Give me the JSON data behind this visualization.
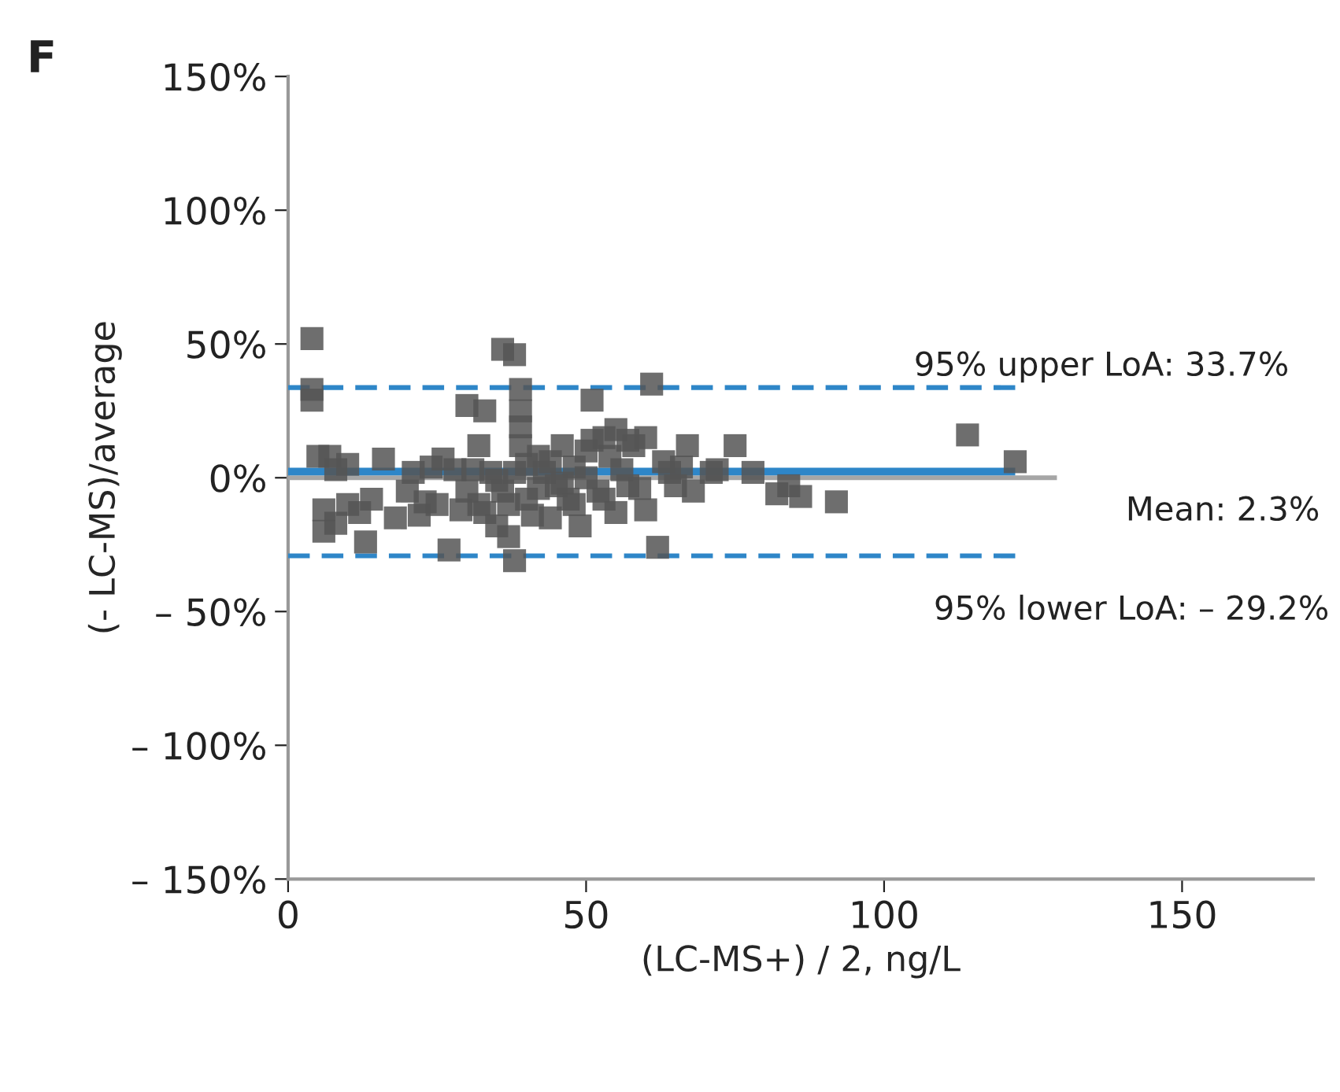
{
  "chart_data": {
    "type": "scatter",
    "xlabel": "(LC-MS+) / 2, ng/L",
    "ylabel": "(- LC-MS)/average",
    "annotations": [
      "F",
      "95% upper LoA: 33.7%",
      "Mean: 2.3%",
      "95% lower LoA: – 29.2%"
    ],
    "xlim": [
      0,
      172
    ],
    "xticks": [
      0,
      50,
      100,
      150
    ],
    "ylim": [
      -150,
      150
    ],
    "yticks": [
      {
        "value": -150,
        "label": "– 150%"
      },
      {
        "value": -100,
        "label": "– 100%"
      },
      {
        "value": -50,
        "label": "– 50%"
      },
      {
        "value": 0,
        "label": "0%"
      },
      {
        "value": 50,
        "label": "50%"
      },
      {
        "value": 100,
        "label": "100%"
      },
      {
        "value": 150,
        "label": "150%"
      }
    ],
    "grid": false,
    "legend": false,
    "series": [
      {
        "type": "line",
        "color": "#a6a6a6",
        "x": [
          0,
          129
        ],
        "values": [
          0,
          0
        ],
        "line_style": "solid"
      },
      {
        "type": "line",
        "color": "#2e86c8",
        "x": [
          0,
          122
        ],
        "values": [
          2.3,
          2.3
        ],
        "line_style": "solid"
      },
      {
        "type": "line",
        "color": "#2e86c8",
        "x": [
          0,
          122
        ],
        "values": [
          33.7,
          33.7
        ],
        "line_style": "dashed"
      },
      {
        "type": "line",
        "color": "#2e86c8",
        "x": [
          0,
          122
        ],
        "values": [
          -29.2,
          -29.2
        ],
        "line_style": "dashed"
      },
      {
        "color": "#555555",
        "marker": "square",
        "x": [
          4,
          4,
          4,
          5,
          6,
          6,
          7,
          8,
          8,
          10,
          12,
          13,
          16,
          20,
          21,
          22,
          23,
          24,
          25,
          26,
          27,
          28,
          29,
          30,
          31,
          32,
          33,
          34,
          35,
          36,
          36,
          37,
          38,
          38,
          39,
          39,
          39,
          39,
          40,
          40,
          38,
          41,
          42,
          44,
          45,
          46,
          47,
          48,
          49,
          50,
          51,
          51,
          52,
          53,
          54,
          55,
          56,
          57,
          58,
          59,
          60,
          61,
          62,
          63,
          64,
          65,
          66,
          67,
          68,
          71,
          72,
          75,
          78,
          82,
          84,
          86,
          92,
          114,
          122,
          30,
          33,
          35,
          37,
          42,
          44,
          46,
          48,
          53,
          57,
          18,
          14,
          10,
          32,
          43,
          60,
          55,
          50
        ],
        "values": [
          52,
          33,
          29,
          8,
          -12,
          -20,
          8,
          3,
          -17,
          -10,
          -13,
          -24,
          7,
          -5,
          2,
          -14,
          -9,
          4,
          -10,
          7,
          -27,
          3,
          -12,
          27,
          3,
          -10,
          25,
          2,
          -1,
          48,
          -5,
          -22,
          2,
          46,
          33,
          25,
          19,
          12,
          5,
          -8,
          -31,
          -14,
          -4,
          -15,
          -3,
          12,
          -8,
          4,
          -18,
          0,
          29,
          14,
          -5,
          15,
          8,
          -13,
          3,
          14,
          12,
          -4,
          15,
          35,
          -26,
          6,
          2,
          -3,
          4,
          12,
          -5,
          2,
          3,
          12,
          2,
          -6,
          -3,
          -7,
          -9,
          16,
          6,
          -5,
          -13,
          -18,
          -10,
          8,
          6,
          -2,
          -10,
          -8,
          -3,
          -15,
          -8,
          5,
          12,
          2,
          -12,
          18,
          10
        ]
      }
    ]
  }
}
